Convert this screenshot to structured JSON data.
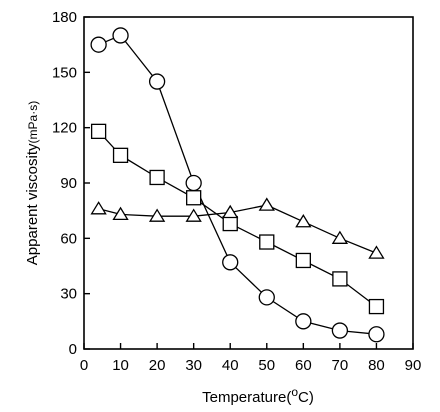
{
  "chart_data": {
    "type": "line",
    "xlabel_main": "Temperature",
    "xlabel_unit_open": "(",
    "xlabel_unit_sup": "o",
    "xlabel_unit_rest": "C)",
    "ylabel_main": "Apparent viscosity",
    "ylabel_unit": "(mPa·s)",
    "xlim": [
      0,
      90
    ],
    "ylim": [
      0,
      180
    ],
    "x_ticks": [
      "0",
      "10",
      "20",
      "30",
      "40",
      "50",
      "60",
      "70",
      "80",
      "90"
    ],
    "y_ticks": [
      "0",
      "30",
      "60",
      "90",
      "120",
      "150",
      "180"
    ],
    "grid": false,
    "legend": "none",
    "series": [
      {
        "marker": "circle",
        "points": [
          [
            4,
            165
          ],
          [
            10,
            170
          ],
          [
            20,
            145
          ],
          [
            30,
            90
          ],
          [
            40,
            47
          ],
          [
            50,
            28
          ],
          [
            60,
            15
          ],
          [
            70,
            10
          ],
          [
            80,
            8
          ]
        ]
      },
      {
        "marker": "square",
        "points": [
          [
            4,
            118
          ],
          [
            10,
            105
          ],
          [
            20,
            93
          ],
          [
            30,
            82
          ],
          [
            40,
            68
          ],
          [
            50,
            58
          ],
          [
            60,
            48
          ],
          [
            70,
            38
          ],
          [
            80,
            23
          ]
        ]
      },
      {
        "marker": "triangle",
        "points": [
          [
            4,
            76
          ],
          [
            10,
            73
          ],
          [
            20,
            72
          ],
          [
            30,
            72
          ],
          [
            40,
            74
          ],
          [
            50,
            78
          ],
          [
            60,
            69
          ],
          [
            70,
            60
          ],
          [
            80,
            52
          ]
        ]
      }
    ]
  }
}
